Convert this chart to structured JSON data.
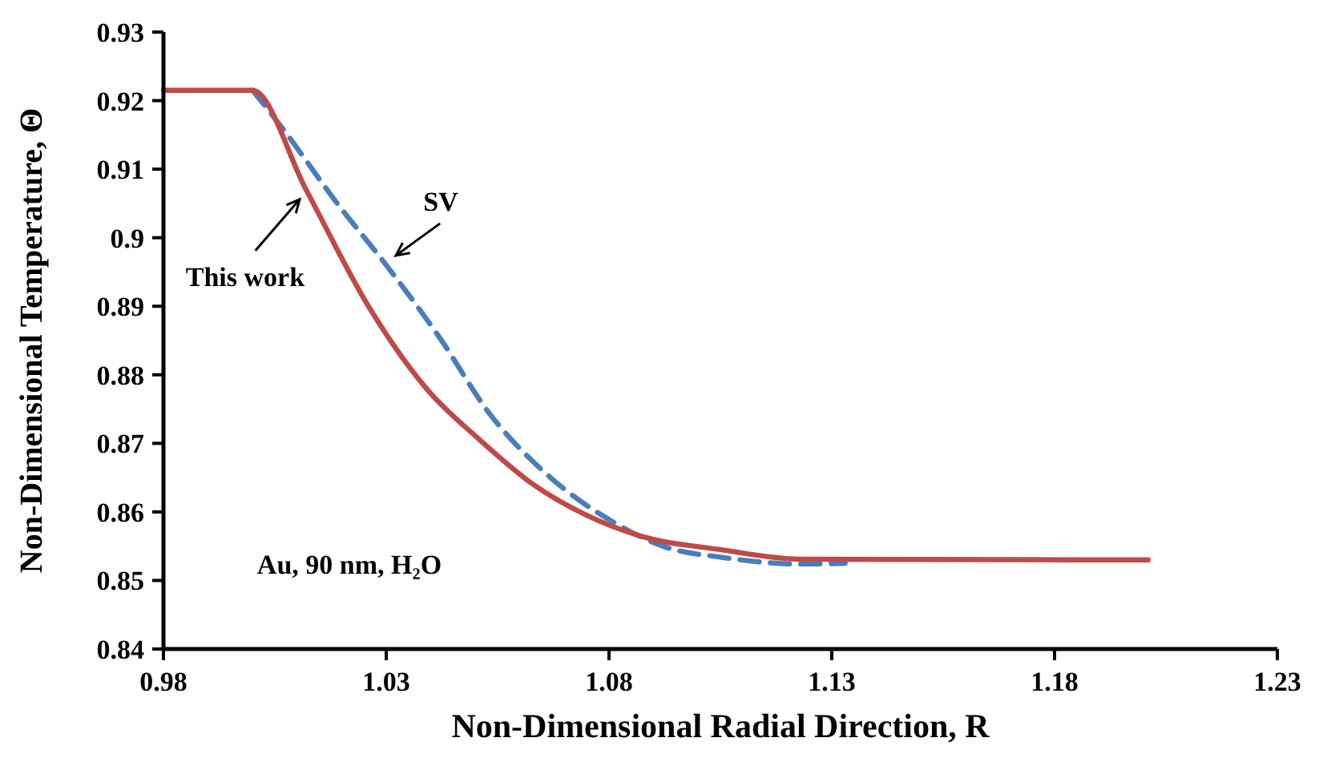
{
  "chart_data": {
    "type": "line",
    "xlabel": "Non-Dimensional Radial Direction, R",
    "ylabel": "Non-Dimensional Temperature, Θ",
    "xlim": [
      0.98,
      1.23
    ],
    "xticks": [
      0.98,
      1.03,
      1.08,
      1.13,
      1.18,
      1.23
    ],
    "ylim": [
      0.84,
      0.93
    ],
    "yticks": [
      0.84,
      0.85,
      0.86,
      0.87,
      0.88,
      0.89,
      0.9,
      0.91,
      0.92,
      0.93
    ],
    "grid": false,
    "legend": false,
    "marker": "none",
    "annotations": [
      "Au, 90 nm, H₂O"
    ],
    "series": [
      {
        "name": "SV",
        "color": "#4a7ebb",
        "line_style": "dashed",
        "x": [
          1.0,
          1.007,
          1.019,
          1.03,
          1.042,
          1.053,
          1.066,
          1.081,
          1.093,
          1.105,
          1.123,
          1.133
        ],
        "values": [
          0.9215,
          0.9157,
          0.905,
          0.896,
          0.8854,
          0.8745,
          0.8655,
          0.8585,
          0.8548,
          0.8534,
          0.8524,
          0.8525
        ]
      },
      {
        "name": "This work",
        "color": "#be4b48",
        "line_style": "solid",
        "x": [
          0.98,
          1.0,
          1.012,
          1.026,
          1.039,
          1.051,
          1.063,
          1.075,
          1.087,
          1.105,
          1.123,
          1.201
        ],
        "values": [
          0.9215,
          0.9215,
          0.907,
          0.89,
          0.878,
          0.8705,
          0.864,
          0.8595,
          0.8565,
          0.8545,
          0.8531,
          0.853
        ]
      }
    ]
  }
}
